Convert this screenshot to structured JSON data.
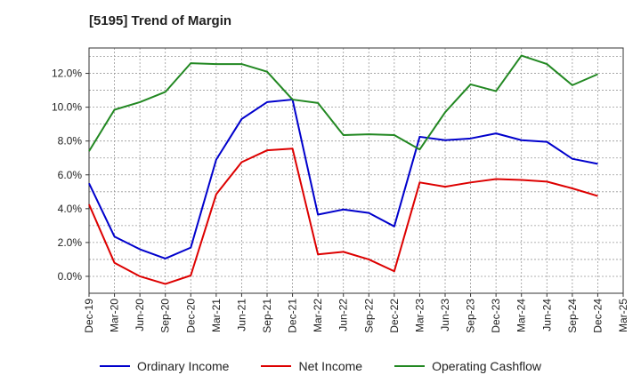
{
  "title": "[5195]  Trend of Margin",
  "chart_data": {
    "type": "line",
    "title": "[5195]  Trend of Margin",
    "xlabel": "",
    "ylabel": "",
    "ylim": [
      -1.0,
      13.5
    ],
    "yticks": [
      0.0,
      2.0,
      4.0,
      6.0,
      8.0,
      10.0,
      12.0
    ],
    "ytick_labels": [
      "0.0%",
      "2.0%",
      "4.0%",
      "6.0%",
      "8.0%",
      "10.0%",
      "12.0%"
    ],
    "grid": true,
    "legend_position": "bottom",
    "categories": [
      "Dec-19",
      "Mar-20",
      "Jun-20",
      "Sep-20",
      "Dec-20",
      "Mar-21",
      "Jun-21",
      "Sep-21",
      "Dec-21",
      "Mar-22",
      "Jun-22",
      "Sep-22",
      "Dec-22",
      "Mar-23",
      "Jun-23",
      "Sep-23",
      "Dec-23",
      "Mar-24",
      "Jun-24",
      "Sep-24",
      "Dec-24",
      "Mar-25"
    ],
    "series": [
      {
        "name": "Ordinary Income",
        "color": "#0000cc",
        "values": [
          5.5,
          2.35,
          1.6,
          1.05,
          1.7,
          6.9,
          9.3,
          10.3,
          10.45,
          3.65,
          3.95,
          3.75,
          2.95,
          8.25,
          8.05,
          8.15,
          8.45,
          8.05,
          7.95,
          6.95,
          6.65,
          null
        ]
      },
      {
        "name": "Net Income",
        "color": "#dd0000",
        "values": [
          4.25,
          0.8,
          0.0,
          -0.45,
          0.05,
          4.85,
          6.75,
          7.45,
          7.55,
          1.3,
          1.45,
          1.0,
          0.3,
          5.55,
          5.3,
          5.55,
          5.75,
          5.7,
          5.6,
          5.2,
          4.75,
          null
        ]
      },
      {
        "name": "Operating Cashflow",
        "color": "#228822",
        "values": [
          7.4,
          9.85,
          10.3,
          10.9,
          12.6,
          12.55,
          12.55,
          12.1,
          10.45,
          10.25,
          8.35,
          8.4,
          8.35,
          7.5,
          9.7,
          11.35,
          10.95,
          13.05,
          12.55,
          11.3,
          11.95,
          null
        ]
      }
    ]
  }
}
